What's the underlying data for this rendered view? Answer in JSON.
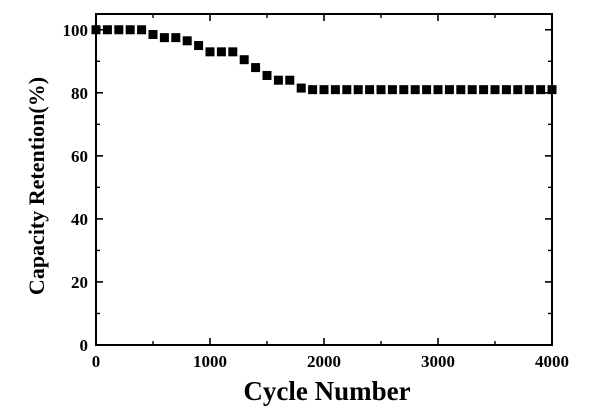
{
  "chart_data": {
    "type": "scatter",
    "title": "",
    "xlabel": "Cycle Number",
    "ylabel": "Capacity Retention(%)",
    "xlim": [
      0,
      4000
    ],
    "ylim": [
      0,
      105
    ],
    "xticks": [
      0,
      1000,
      2000,
      3000,
      4000
    ],
    "yticks": [
      0,
      20,
      40,
      60,
      80,
      100
    ],
    "grid": false,
    "legend": "none",
    "marker": "square",
    "marker_color": "#000000",
    "series": [
      {
        "x": [
          0,
          100,
          200,
          300,
          400,
          500,
          600,
          700,
          800,
          900,
          1000,
          1100,
          1200,
          1300,
          1400,
          1500,
          1600,
          1700,
          1800,
          1900,
          2000,
          2100,
          2200,
          2300,
          2400,
          2500,
          2600,
          2700,
          2800,
          2900,
          3000,
          3100,
          3200,
          3300,
          3400,
          3500,
          3600,
          3700,
          3800,
          3900,
          4000
        ],
        "values": [
          100,
          100,
          100,
          100,
          100,
          98.5,
          97.5,
          97.5,
          96.5,
          95,
          93,
          93,
          93,
          90.5,
          88,
          85.5,
          84,
          84,
          81.5,
          81,
          81,
          81,
          81,
          81,
          81,
          81,
          81,
          81,
          81,
          81,
          81,
          81,
          81,
          81,
          81,
          81,
          81,
          81,
          81,
          81,
          81
        ]
      }
    ]
  }
}
